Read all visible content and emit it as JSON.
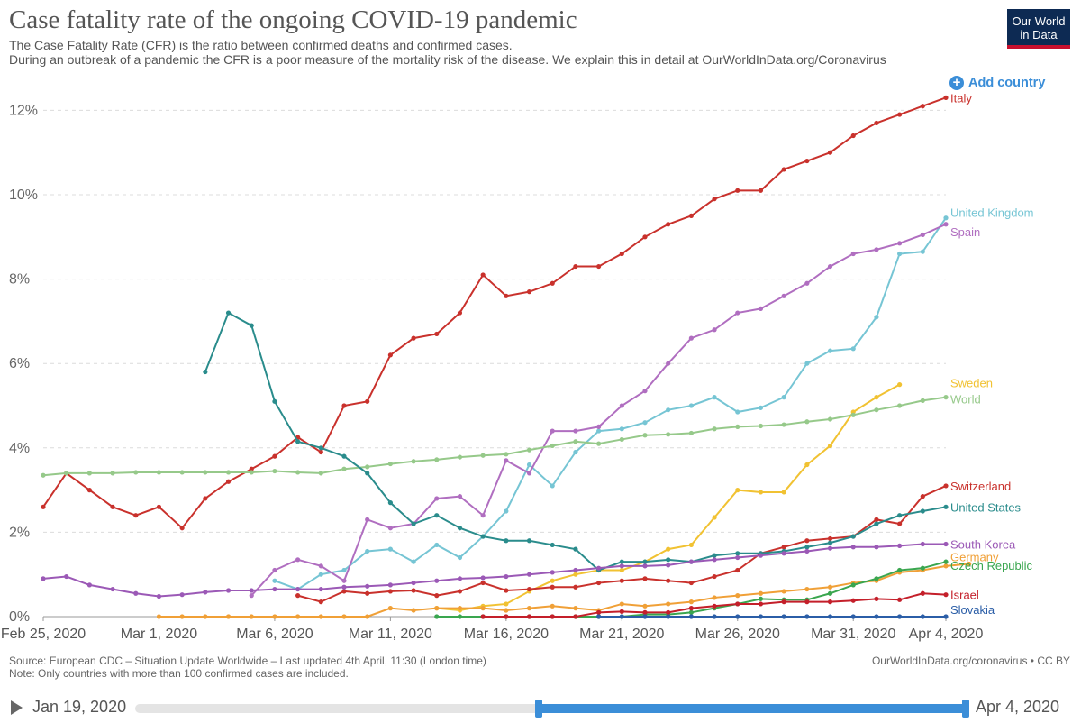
{
  "header": {
    "title": "Case fatality rate of the ongoing COVID-19 pandemic",
    "subtitle_line1": "The Case Fatality Rate (CFR) is the ratio between confirmed deaths and confirmed cases.",
    "subtitle_line2": "During an outbreak of a pandemic the CFR is a poor measure of the mortality risk of the disease. We explain this in detail at OurWorldInData.org/Coronavirus",
    "logo_line1": "Our World",
    "logo_line2": "in Data"
  },
  "controls": {
    "add_country_label": "Add country",
    "add_icon": "plus-circle-icon"
  },
  "footer": {
    "source": "Source: European CDC – Situation Update Worldwide – Last updated 4th April, 11:30 (London time)",
    "note": "Note: Only countries with more than 100 confirmed cases are included.",
    "credit": "OurWorldInData.org/coronavirus • CC BY"
  },
  "timeline": {
    "start_label": "Jan 19, 2020",
    "end_label": "Apr 4, 2020",
    "play_icon": "play-icon",
    "selected_start": "Feb 25, 2020",
    "selected_end": "Apr 4, 2020"
  },
  "chart_data": {
    "type": "line",
    "title": "Case fatality rate of the ongoing COVID-19 pandemic",
    "x_start": "Feb 25, 2020",
    "x_end": "Apr 4, 2020",
    "x_ticks": [
      {
        "d": 0,
        "label": "Feb 25, 2020"
      },
      {
        "d": 5,
        "label": "Mar 1, 2020"
      },
      {
        "d": 10,
        "label": "Mar 6, 2020"
      },
      {
        "d": 15,
        "label": "Mar 11, 2020"
      },
      {
        "d": 20,
        "label": "Mar 16, 2020"
      },
      {
        "d": 25,
        "label": "Mar 21, 2020"
      },
      {
        "d": 30,
        "label": "Mar 26, 2020"
      },
      {
        "d": 35,
        "label": "Mar 31, 2020"
      },
      {
        "d": 39,
        "label": "Apr 4, 2020"
      }
    ],
    "y_ticks": [
      {
        "v": 0,
        "label": "0%"
      },
      {
        "v": 2,
        "label": "2%"
      },
      {
        "v": 4,
        "label": "4%"
      },
      {
        "v": 6,
        "label": "6%"
      },
      {
        "v": 8,
        "label": "8%"
      },
      {
        "v": 10,
        "label": "10%"
      },
      {
        "v": 12,
        "label": "12%"
      }
    ],
    "ylim": [
      0,
      12.4
    ],
    "ylabel": "",
    "grid": "horizontal dashed",
    "series": [
      {
        "name": "Italy",
        "color": "#c9312c",
        "start": 0,
        "values": [
          2.6,
          3.4,
          3.0,
          2.6,
          2.4,
          2.6,
          2.1,
          2.8,
          3.2,
          3.5,
          3.8,
          4.25,
          3.9,
          5.0,
          5.1,
          6.2,
          6.6,
          6.7,
          7.2,
          8.1,
          7.6,
          7.7,
          7.9,
          8.3,
          8.3,
          8.6,
          9.0,
          9.3,
          9.5,
          9.9,
          10.1,
          10.1,
          10.6,
          10.8,
          11.0,
          11.4,
          11.7,
          11.9,
          12.1,
          12.3
        ]
      },
      {
        "name": "United Kingdom",
        "color": "#76c5d4",
        "start": 10,
        "values": [
          0.85,
          0.65,
          1.0,
          1.1,
          1.55,
          1.6,
          1.3,
          1.7,
          1.4,
          1.9,
          2.5,
          3.6,
          3.1,
          3.9,
          4.4,
          4.45,
          4.6,
          4.9,
          5.0,
          5.2,
          4.85,
          4.95,
          5.2,
          6.0,
          6.3,
          6.35,
          7.1,
          8.6,
          8.65,
          9.45
        ]
      },
      {
        "name": "Spain",
        "color": "#b06ec0",
        "start": 9,
        "values": [
          0.5,
          1.1,
          1.35,
          1.2,
          0.85,
          2.3,
          2.1,
          2.2,
          2.8,
          2.85,
          2.4,
          3.7,
          3.4,
          4.4,
          4.4,
          4.5,
          5.0,
          5.35,
          6.0,
          6.6,
          6.8,
          7.2,
          7.3,
          7.6,
          7.9,
          8.3,
          8.6,
          8.7,
          8.85,
          9.05,
          9.3
        ]
      },
      {
        "name": "Sweden",
        "color": "#f1c232",
        "start": 17,
        "values": [
          0.2,
          0.15,
          0.25,
          0.3,
          0.6,
          0.85,
          1.0,
          1.1,
          1.1,
          1.3,
          1.6,
          1.7,
          2.35,
          3.0,
          2.95,
          2.95,
          3.6,
          4.05,
          4.85,
          5.2,
          5.5
        ]
      },
      {
        "name": "World",
        "color": "#96c98a",
        "start": 0,
        "values": [
          3.35,
          3.4,
          3.4,
          3.4,
          3.42,
          3.42,
          3.42,
          3.42,
          3.42,
          3.42,
          3.45,
          3.42,
          3.4,
          3.5,
          3.55,
          3.62,
          3.68,
          3.72,
          3.78,
          3.82,
          3.85,
          3.95,
          4.05,
          4.15,
          4.1,
          4.2,
          4.3,
          4.32,
          4.35,
          4.45,
          4.5,
          4.52,
          4.55,
          4.62,
          4.68,
          4.78,
          4.9,
          5.0,
          5.12,
          5.2
        ]
      },
      {
        "name": "Switzerland",
        "color": "#c9312c",
        "start": 11,
        "values": [
          0.5,
          0.35,
          0.6,
          0.55,
          0.6,
          0.62,
          0.5,
          0.6,
          0.8,
          0.62,
          0.65,
          0.7,
          0.7,
          0.8,
          0.85,
          0.9,
          0.85,
          0.8,
          0.95,
          1.1,
          1.5,
          1.65,
          1.8,
          1.85,
          1.9,
          2.3,
          2.2,
          2.85,
          3.1
        ]
      },
      {
        "name": "United States",
        "color": "#2a8c8c",
        "start": 7,
        "values": [
          5.8,
          7.2,
          6.9,
          5.1,
          4.15,
          4.0,
          3.8,
          3.4,
          2.7,
          2.2,
          2.4,
          2.1,
          1.9,
          1.8,
          1.8,
          1.7,
          1.6,
          1.1,
          1.3,
          1.3,
          1.35,
          1.3,
          1.45,
          1.5,
          1.5,
          1.55,
          1.65,
          1.75,
          1.9,
          2.2,
          2.4,
          2.5,
          2.6
        ]
      },
      {
        "name": "South Korea",
        "color": "#9b59b6",
        "start": 0,
        "values": [
          0.9,
          0.95,
          0.75,
          0.65,
          0.55,
          0.48,
          0.52,
          0.58,
          0.62,
          0.62,
          0.65,
          0.65,
          0.65,
          0.7,
          0.72,
          0.75,
          0.8,
          0.85,
          0.9,
          0.92,
          0.95,
          1.0,
          1.05,
          1.1,
          1.15,
          1.2,
          1.2,
          1.22,
          1.3,
          1.35,
          1.4,
          1.45,
          1.5,
          1.55,
          1.62,
          1.65,
          1.65,
          1.68,
          1.72,
          1.72
        ]
      },
      {
        "name": "Germany",
        "color": "#f0a037",
        "start": 5,
        "values": [
          0,
          0,
          0,
          0,
          0,
          0,
          0,
          0,
          0,
          0,
          0.2,
          0.15,
          0.2,
          0.2,
          0.2,
          0.15,
          0.2,
          0.25,
          0.2,
          0.15,
          0.3,
          0.25,
          0.3,
          0.35,
          0.45,
          0.5,
          0.55,
          0.6,
          0.65,
          0.7,
          0.8,
          0.85,
          1.05,
          1.1,
          1.2,
          1.25
        ]
      },
      {
        "name": "Czech Republic",
        "color": "#3aa64f",
        "start": 17,
        "values": [
          0,
          0,
          0,
          0,
          0,
          0,
          0,
          0,
          0,
          0.05,
          0.05,
          0.1,
          0.2,
          0.3,
          0.42,
          0.4,
          0.4,
          0.55,
          0.75,
          0.9,
          1.1,
          1.15,
          1.3
        ]
      },
      {
        "name": "Israel",
        "color": "#c41f2a",
        "start": 19,
        "values": [
          0,
          0,
          0,
          0,
          0,
          0.1,
          0.12,
          0.1,
          0.1,
          0.2,
          0.25,
          0.3,
          0.3,
          0.35,
          0.35,
          0.35,
          0.38,
          0.42,
          0.4,
          0.55,
          0.52
        ]
      },
      {
        "name": "Slovakia",
        "color": "#2b5ea7",
        "start": 24,
        "values": [
          0,
          0,
          0,
          0,
          0,
          0,
          0,
          0,
          0,
          0,
          0,
          0,
          0,
          0,
          0,
          0
        ]
      }
    ],
    "legend_placement": "right-end labels"
  }
}
